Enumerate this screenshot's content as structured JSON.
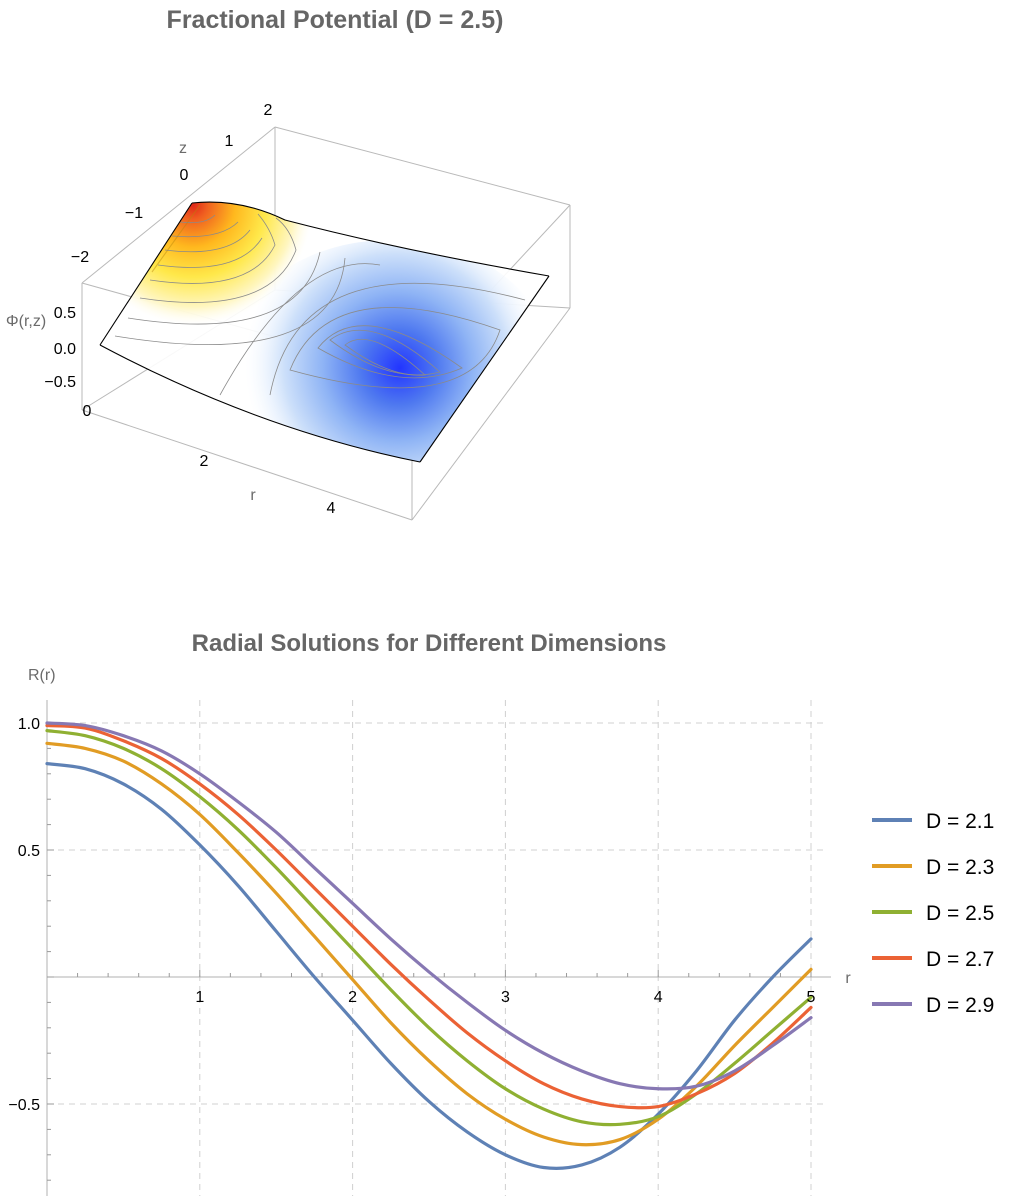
{
  "chart_data": [
    {
      "type": "surface3d",
      "title": "Fractional Potential (D = 2.5)",
      "xlabel": "r",
      "ylabel": "z",
      "zlabel": "Φ(r,z)",
      "x_ticks": [
        "2",
        "4"
      ],
      "y_ticks": [
        "−2",
        "−1",
        "0",
        "1",
        "2"
      ],
      "z_ticks": [
        "0.5",
        "0.0",
        "−0.5"
      ],
      "corner_tick": "0",
      "xlim": [
        0,
        5
      ],
      "ylim": [
        -2,
        2
      ],
      "zlim": [
        -0.75,
        0.75
      ],
      "contours": true,
      "colors": {
        "positive": "#ffd21a",
        "peak": "#e03020",
        "negative": "#2040ff"
      }
    },
    {
      "type": "line",
      "title": "Radial Solutions for Different Dimensions",
      "xlabel": "r",
      "ylabel": "R(r)",
      "xlim": [
        0,
        5
      ],
      "ylim": [
        -0.82,
        1.1
      ],
      "x_ticks": [
        1,
        2,
        3,
        4,
        5
      ],
      "y_ticks": [
        {
          "value": 1.0,
          "label": "1.0"
        },
        {
          "value": 0.5,
          "label": "0.5"
        },
        {
          "value": -0.5,
          "label": "−0.5"
        }
      ],
      "grid": true,
      "legend_position": "right",
      "x": [
        0,
        0.25,
        0.5,
        0.75,
        1,
        1.25,
        1.5,
        1.75,
        2,
        2.25,
        2.5,
        2.75,
        3,
        3.25,
        3.5,
        3.75,
        4,
        4.25,
        4.5,
        4.75,
        5
      ],
      "series": [
        {
          "name": "D = 2.1",
          "color": "#5e81b5",
          "values": [
            0.84,
            0.82,
            0.76,
            0.66,
            0.52,
            0.36,
            0.18,
            0.0,
            -0.17,
            -0.34,
            -0.49,
            -0.61,
            -0.7,
            -0.75,
            -0.74,
            -0.67,
            -0.54,
            -0.37,
            -0.17,
            0.0,
            0.15
          ]
        },
        {
          "name": "D = 2.3",
          "color": "#e19c24",
          "values": [
            0.92,
            0.9,
            0.85,
            0.76,
            0.64,
            0.49,
            0.33,
            0.16,
            -0.01,
            -0.18,
            -0.33,
            -0.46,
            -0.56,
            -0.63,
            -0.66,
            -0.64,
            -0.56,
            -0.43,
            -0.27,
            -0.12,
            0.03
          ]
        },
        {
          "name": "D = 2.5",
          "color": "#8fb032",
          "values": [
            0.97,
            0.95,
            0.9,
            0.82,
            0.71,
            0.58,
            0.43,
            0.27,
            0.11,
            -0.05,
            -0.2,
            -0.33,
            -0.44,
            -0.52,
            -0.57,
            -0.58,
            -0.55,
            -0.46,
            -0.34,
            -0.21,
            -0.08
          ]
        },
        {
          "name": "D = 2.7",
          "color": "#eb6235",
          "values": [
            0.99,
            0.98,
            0.93,
            0.86,
            0.76,
            0.64,
            0.5,
            0.35,
            0.2,
            0.05,
            -0.09,
            -0.22,
            -0.33,
            -0.42,
            -0.48,
            -0.51,
            -0.51,
            -0.46,
            -0.38,
            -0.26,
            -0.12
          ]
        },
        {
          "name": "D = 2.9",
          "color": "#8778b3",
          "values": [
            1.0,
            0.99,
            0.95,
            0.89,
            0.8,
            0.69,
            0.57,
            0.43,
            0.29,
            0.15,
            0.02,
            -0.1,
            -0.21,
            -0.3,
            -0.37,
            -0.42,
            -0.44,
            -0.43,
            -0.37,
            -0.27,
            -0.16
          ]
        }
      ]
    }
  ]
}
